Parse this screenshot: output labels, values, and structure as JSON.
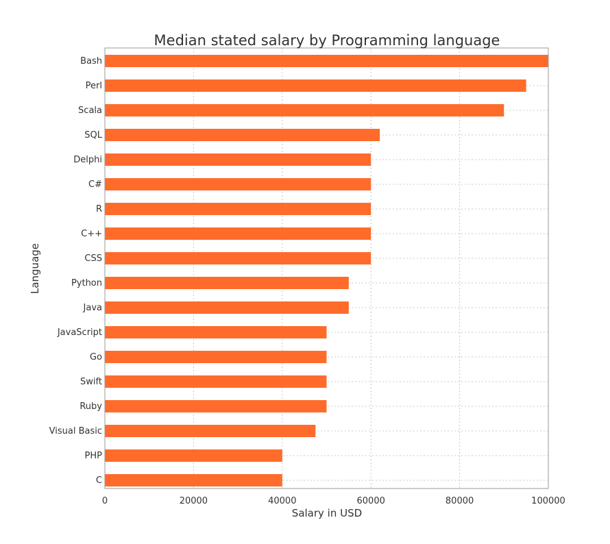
{
  "chart_data": {
    "type": "bar",
    "orientation": "horizontal",
    "title": "Median stated salary by Programming language",
    "xlabel": "Salary in USD",
    "ylabel": "Language",
    "categories": [
      "Bash",
      "Perl",
      "Scala",
      "SQL",
      "Delphi",
      "C#",
      "R",
      "C++",
      "CSS",
      "Python",
      "Java",
      "JavaScript",
      "Go",
      "Swift",
      "Ruby",
      "Visual Basic",
      "PHP",
      "C"
    ],
    "values": [
      100000,
      95000,
      90000,
      62000,
      60000,
      60000,
      60000,
      60000,
      60000,
      55000,
      55000,
      50000,
      50000,
      50000,
      50000,
      47500,
      40000,
      40000
    ],
    "xlim": [
      0,
      100000
    ],
    "xticks": [
      "0",
      "20000",
      "40000",
      "60000",
      "80000",
      "100000"
    ],
    "grid": true,
    "bar_color": "#ff6b2b"
  }
}
